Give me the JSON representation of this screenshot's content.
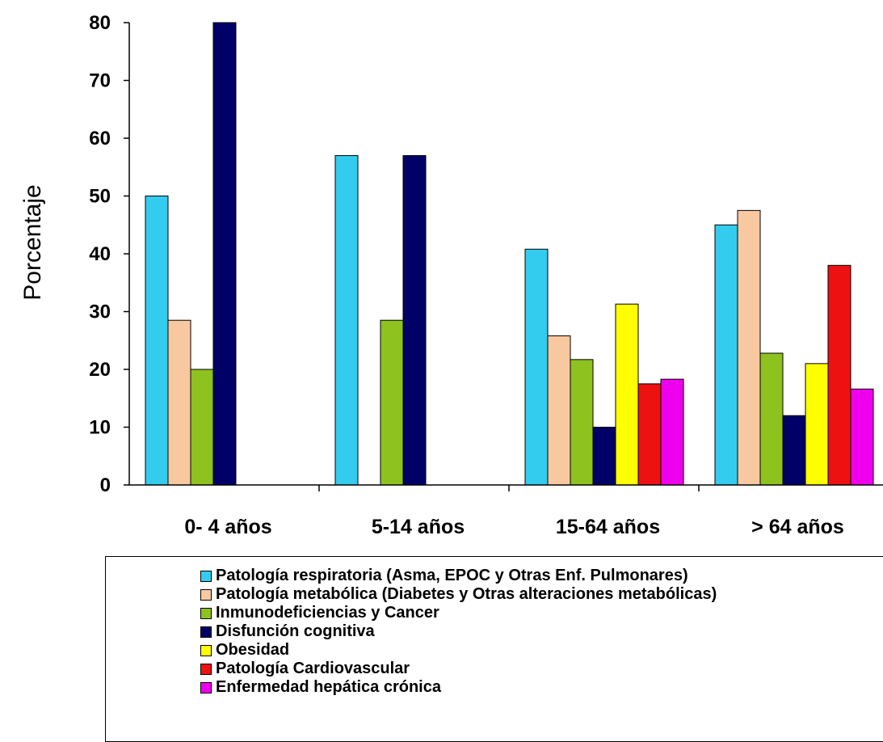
{
  "chart_data": {
    "type": "bar",
    "title": "",
    "xlabel": "",
    "ylabel": "Porcentaje",
    "ylim": [
      0,
      80
    ],
    "yticks": [
      0,
      10,
      20,
      30,
      40,
      50,
      60,
      70,
      80
    ],
    "grid": false,
    "legend_position": "bottom",
    "categories": [
      "0- 4 años",
      "5-14 años",
      "15-64 años",
      "> 64 años"
    ],
    "series": [
      {
        "name": "Patología respiratoria (Asma, EPOC y Otras Enf. Pulmonares)",
        "color": "#33CCEE",
        "values": [
          50,
          57,
          40.8,
          45
        ]
      },
      {
        "name": "Patología metabólica (Diabetes y Otras alteraciones metabólicas)",
        "color": "#F8C8A0",
        "values": [
          28.5,
          null,
          25.8,
          47.5
        ]
      },
      {
        "name": "Inmunodeficiencias y Cancer",
        "color": "#8DC21F",
        "values": [
          20,
          28.5,
          21.7,
          22.8
        ]
      },
      {
        "name": "Disfunción cognitiva",
        "color": "#000066",
        "values": [
          80,
          57,
          10,
          12
        ]
      },
      {
        "name": "Obesidad",
        "color": "#FFFF00",
        "values": [
          null,
          null,
          31.3,
          21
        ]
      },
      {
        "name": "Patología Cardiovascular",
        "color": "#EE1111",
        "values": [
          null,
          null,
          17.5,
          38
        ]
      },
      {
        "name": "Enfermedad hepática crónica",
        "color": "#EE00EE",
        "values": [
          null,
          null,
          18.3,
          16.6
        ]
      }
    ]
  }
}
